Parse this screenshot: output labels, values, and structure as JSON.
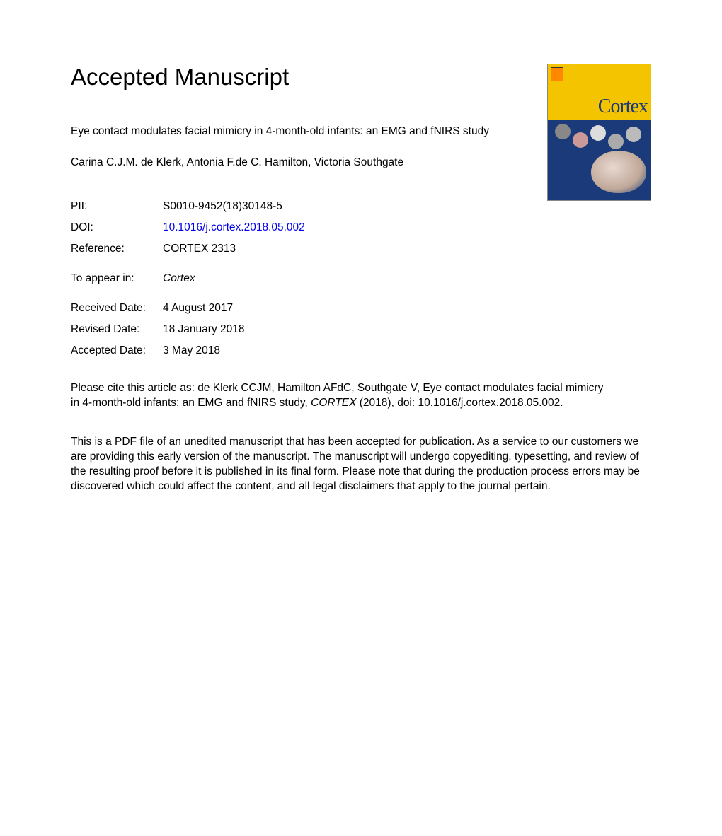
{
  "heading": "Accepted Manuscript",
  "article_title": "Eye contact modulates facial mimicry in 4-month-old infants: an EMG and fNIRS study",
  "authors": "Carina C.J.M. de Klerk, Antonia F.de C. Hamilton, Victoria Southgate",
  "meta": {
    "pii_label": "PII:",
    "pii_value": "S0010-9452(18)30148-5",
    "doi_label": "DOI:",
    "doi_value": "10.1016/j.cortex.2018.05.002",
    "ref_label": "Reference:",
    "ref_value": "CORTEX 2313",
    "appear_label": "To appear in:",
    "appear_value": "Cortex",
    "received_label": "Received Date:",
    "received_value": "4 August 2017",
    "revised_label": "Revised Date:",
    "revised_value": "18 January 2018",
    "accepted_label": "Accepted Date:",
    "accepted_value": "3 May 2018"
  },
  "citation_pre": "Please cite this article as: de Klerk CCJM, Hamilton AFdC, Southgate V, Eye contact modulates facial mimicry in 4-month-old infants: an EMG and fNIRS study, ",
  "citation_journal": "CORTEX",
  "citation_post": " (2018), doi: 10.1016/j.cortex.2018.05.002.",
  "disclaimer": "This is a PDF file of an unedited manuscript that has been accepted for publication. As a service to our customers we are providing this early version of the manuscript. The manuscript will undergo copyediting, typesetting, and review of the resulting proof before it is published in its final form. Please note that during the production process errors may be discovered which could affect the content, and all legal disclaimers that apply to the journal pertain.",
  "cover": {
    "journal_name": "Cortex",
    "colors": {
      "top_bg": "#f5c400",
      "bottom_bg": "#1a3a7a",
      "title_color": "#1a3a7a"
    }
  }
}
